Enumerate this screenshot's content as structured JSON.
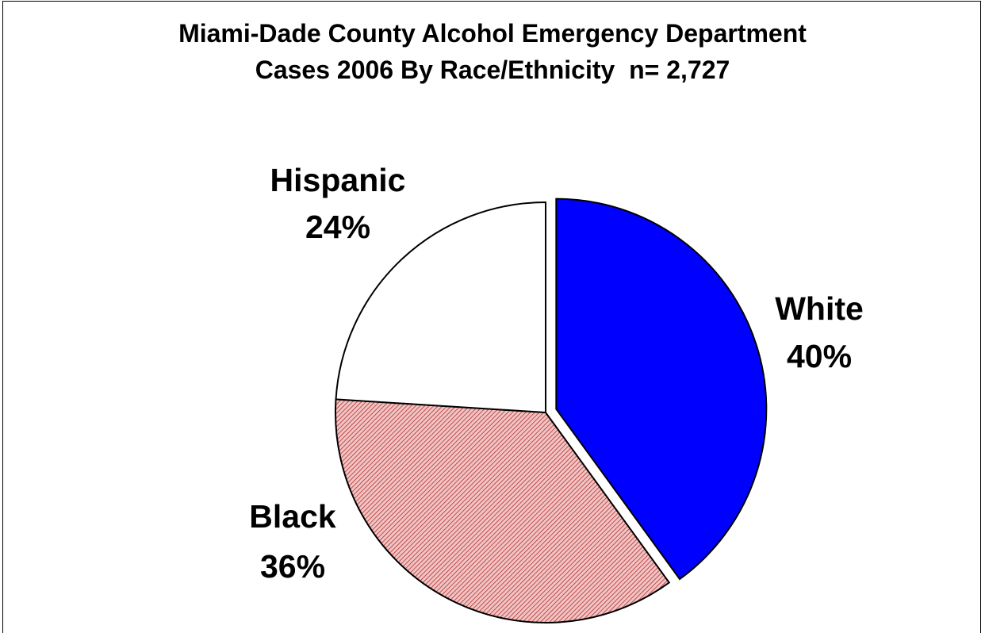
{
  "chart_data": {
    "type": "pie",
    "title": [
      "Miami-Dade County Alcohol Emergency Department",
      "Cases 2006 By Race/Ethnicity  n= 2,727"
    ],
    "slices": [
      {
        "label": "White",
        "value": 40,
        "value_label": "40%",
        "color": "#0000ff",
        "pattern": "solid",
        "exploded": true
      },
      {
        "label": "Black",
        "value": 36,
        "value_label": "36%",
        "color": "#e8a0a0",
        "pattern": "hatched"
      },
      {
        "label": "Hispanic",
        "value": 24,
        "value_label": "24%",
        "color": "#ffffff",
        "pattern": "solid"
      }
    ],
    "start_angle": "12 o'clock",
    "direction": "clockwise",
    "legend": "none"
  }
}
